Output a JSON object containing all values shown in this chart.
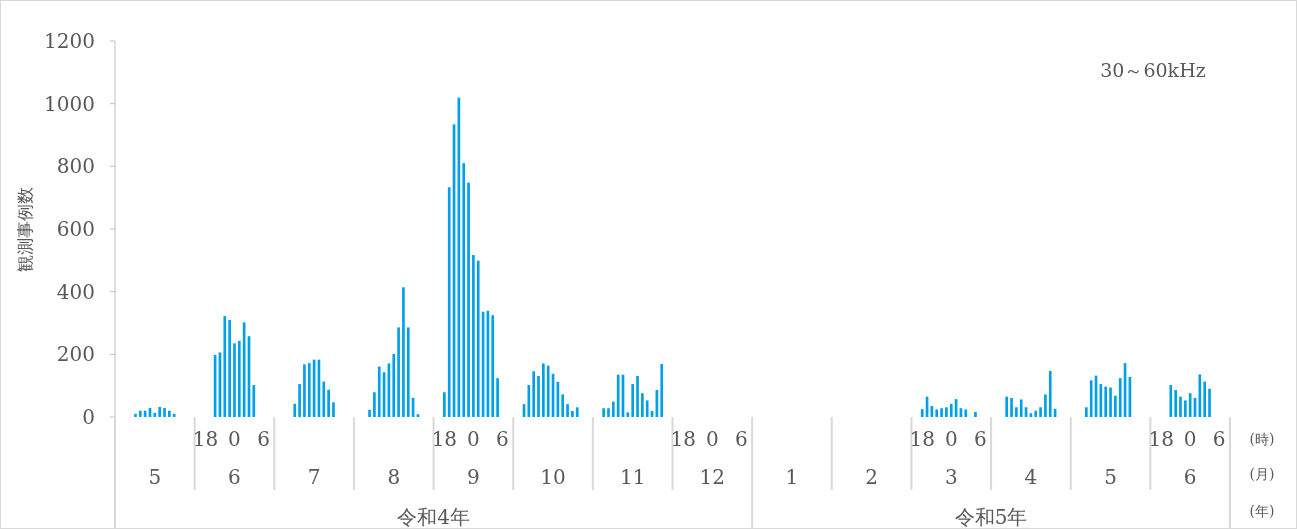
{
  "chart_data": {
    "type": "bar",
    "title": "30～60kHz",
    "ylabel": "観測事例数",
    "categories": [
      "5",
      "6",
      "7",
      "8",
      "9",
      "10",
      "11",
      "12",
      "1",
      "2",
      "3",
      "4",
      "5",
      "6"
    ],
    "ylim": [
      0,
      1200
    ],
    "yticks": [
      0,
      200,
      400,
      600,
      800,
      1000,
      1200
    ],
    "series": [
      {
        "color": "#00a0e9",
        "values": [
          null,
          null,
          null,
          null,
          79,
          41,
          28,
          null,
          null,
          null,
          25,
          null,
          null,
          null
        ]
      },
      {
        "color": "#00a0e9",
        "values": [
          null,
          null,
          null,
          23,
          733,
          102,
          28,
          null,
          null,
          null,
          65,
          65,
          31,
          null
        ]
      },
      {
        "color": "#00a0e9",
        "values": [
          10,
          198,
          42,
          79,
          934,
          146,
          49,
          null,
          null,
          null,
          35,
          61,
          117,
          102
        ]
      },
      {
        "color": "#00a0e9",
        "values": [
          20,
          206,
          105,
          161,
          1019,
          131,
          135,
          null,
          null,
          null,
          24,
          31,
          132,
          86
        ]
      },
      {
        "color": "#00a0e9",
        "values": [
          20,
          322,
          168,
          143,
          810,
          171,
          135,
          null,
          null,
          null,
          28,
          56,
          105,
          65
        ]
      },
      {
        "color": "#00a0e9",
        "values": [
          29,
          310,
          172,
          171,
          748,
          164,
          15,
          null,
          null,
          null,
          31,
          31,
          97,
          53
        ]
      },
      {
        "color": "#00a0e9",
        "values": [
          13,
          235,
          183,
          201,
          517,
          138,
          105,
          null,
          null,
          null,
          42,
          12,
          94,
          76
        ]
      },
      {
        "color": "#00a0e9",
        "values": [
          32,
          243,
          183,
          286,
          499,
          112,
          131,
          null,
          null,
          null,
          57,
          20,
          68,
          61
        ]
      },
      {
        "color": "#00a0e9",
        "values": [
          29,
          302,
          113,
          414,
          336,
          72,
          76,
          null,
          null,
          null,
          28,
          31,
          124,
          136
        ]
      },
      {
        "color": "#00a0e9",
        "values": [
          20,
          258,
          87,
          286,
          339,
          41,
          53,
          null,
          null,
          null,
          24,
          72,
          172,
          113
        ]
      },
      {
        "color": "#00a0e9",
        "values": [
          10,
          102,
          47,
          61,
          325,
          19,
          19,
          null,
          null,
          null,
          null,
          147,
          128,
          90
        ]
      },
      {
        "color": "#00a0e9",
        "values": [
          null,
          null,
          null,
          9,
          124,
          31,
          86,
          null,
          null,
          null,
          16,
          26,
          null,
          null
        ]
      },
      {
        "color": "#00a0e9",
        "values": [
          null,
          null,
          null,
          null,
          null,
          null,
          169,
          null,
          null,
          null,
          null,
          null,
          null,
          null
        ]
      }
    ],
    "annotations": [
      "18",
      "0",
      "6",
      "18",
      "0",
      "6",
      "18",
      "0",
      "6",
      "18",
      "0",
      "6",
      "18",
      "0",
      "6",
      "令和4年",
      "令和5年",
      "(時)",
      "(月)",
      "(年)"
    ]
  }
}
